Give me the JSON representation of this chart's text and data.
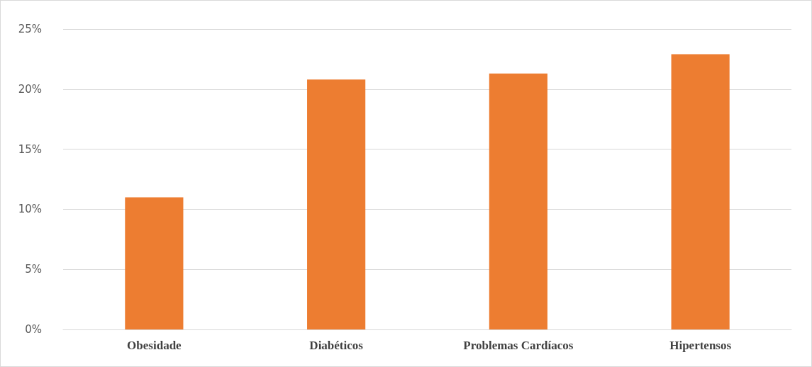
{
  "chart_data": {
    "type": "bar",
    "categories": [
      "Obesidade",
      "Diabéticos",
      "Problemas Cardíacos",
      "Hipertensos"
    ],
    "values": [
      11,
      20.8,
      21.3,
      22.9
    ],
    "color": "#ed7d31",
    "ylim": [
      0,
      25
    ],
    "yticks": [
      {
        "value": 0,
        "label": "0%"
      },
      {
        "value": 5,
        "label": "5%"
      },
      {
        "value": 10,
        "label": "10%"
      },
      {
        "value": 15,
        "label": "15%"
      },
      {
        "value": 20,
        "label": "20%"
      },
      {
        "value": 25,
        "label": "25%"
      }
    ],
    "grid": "y"
  }
}
